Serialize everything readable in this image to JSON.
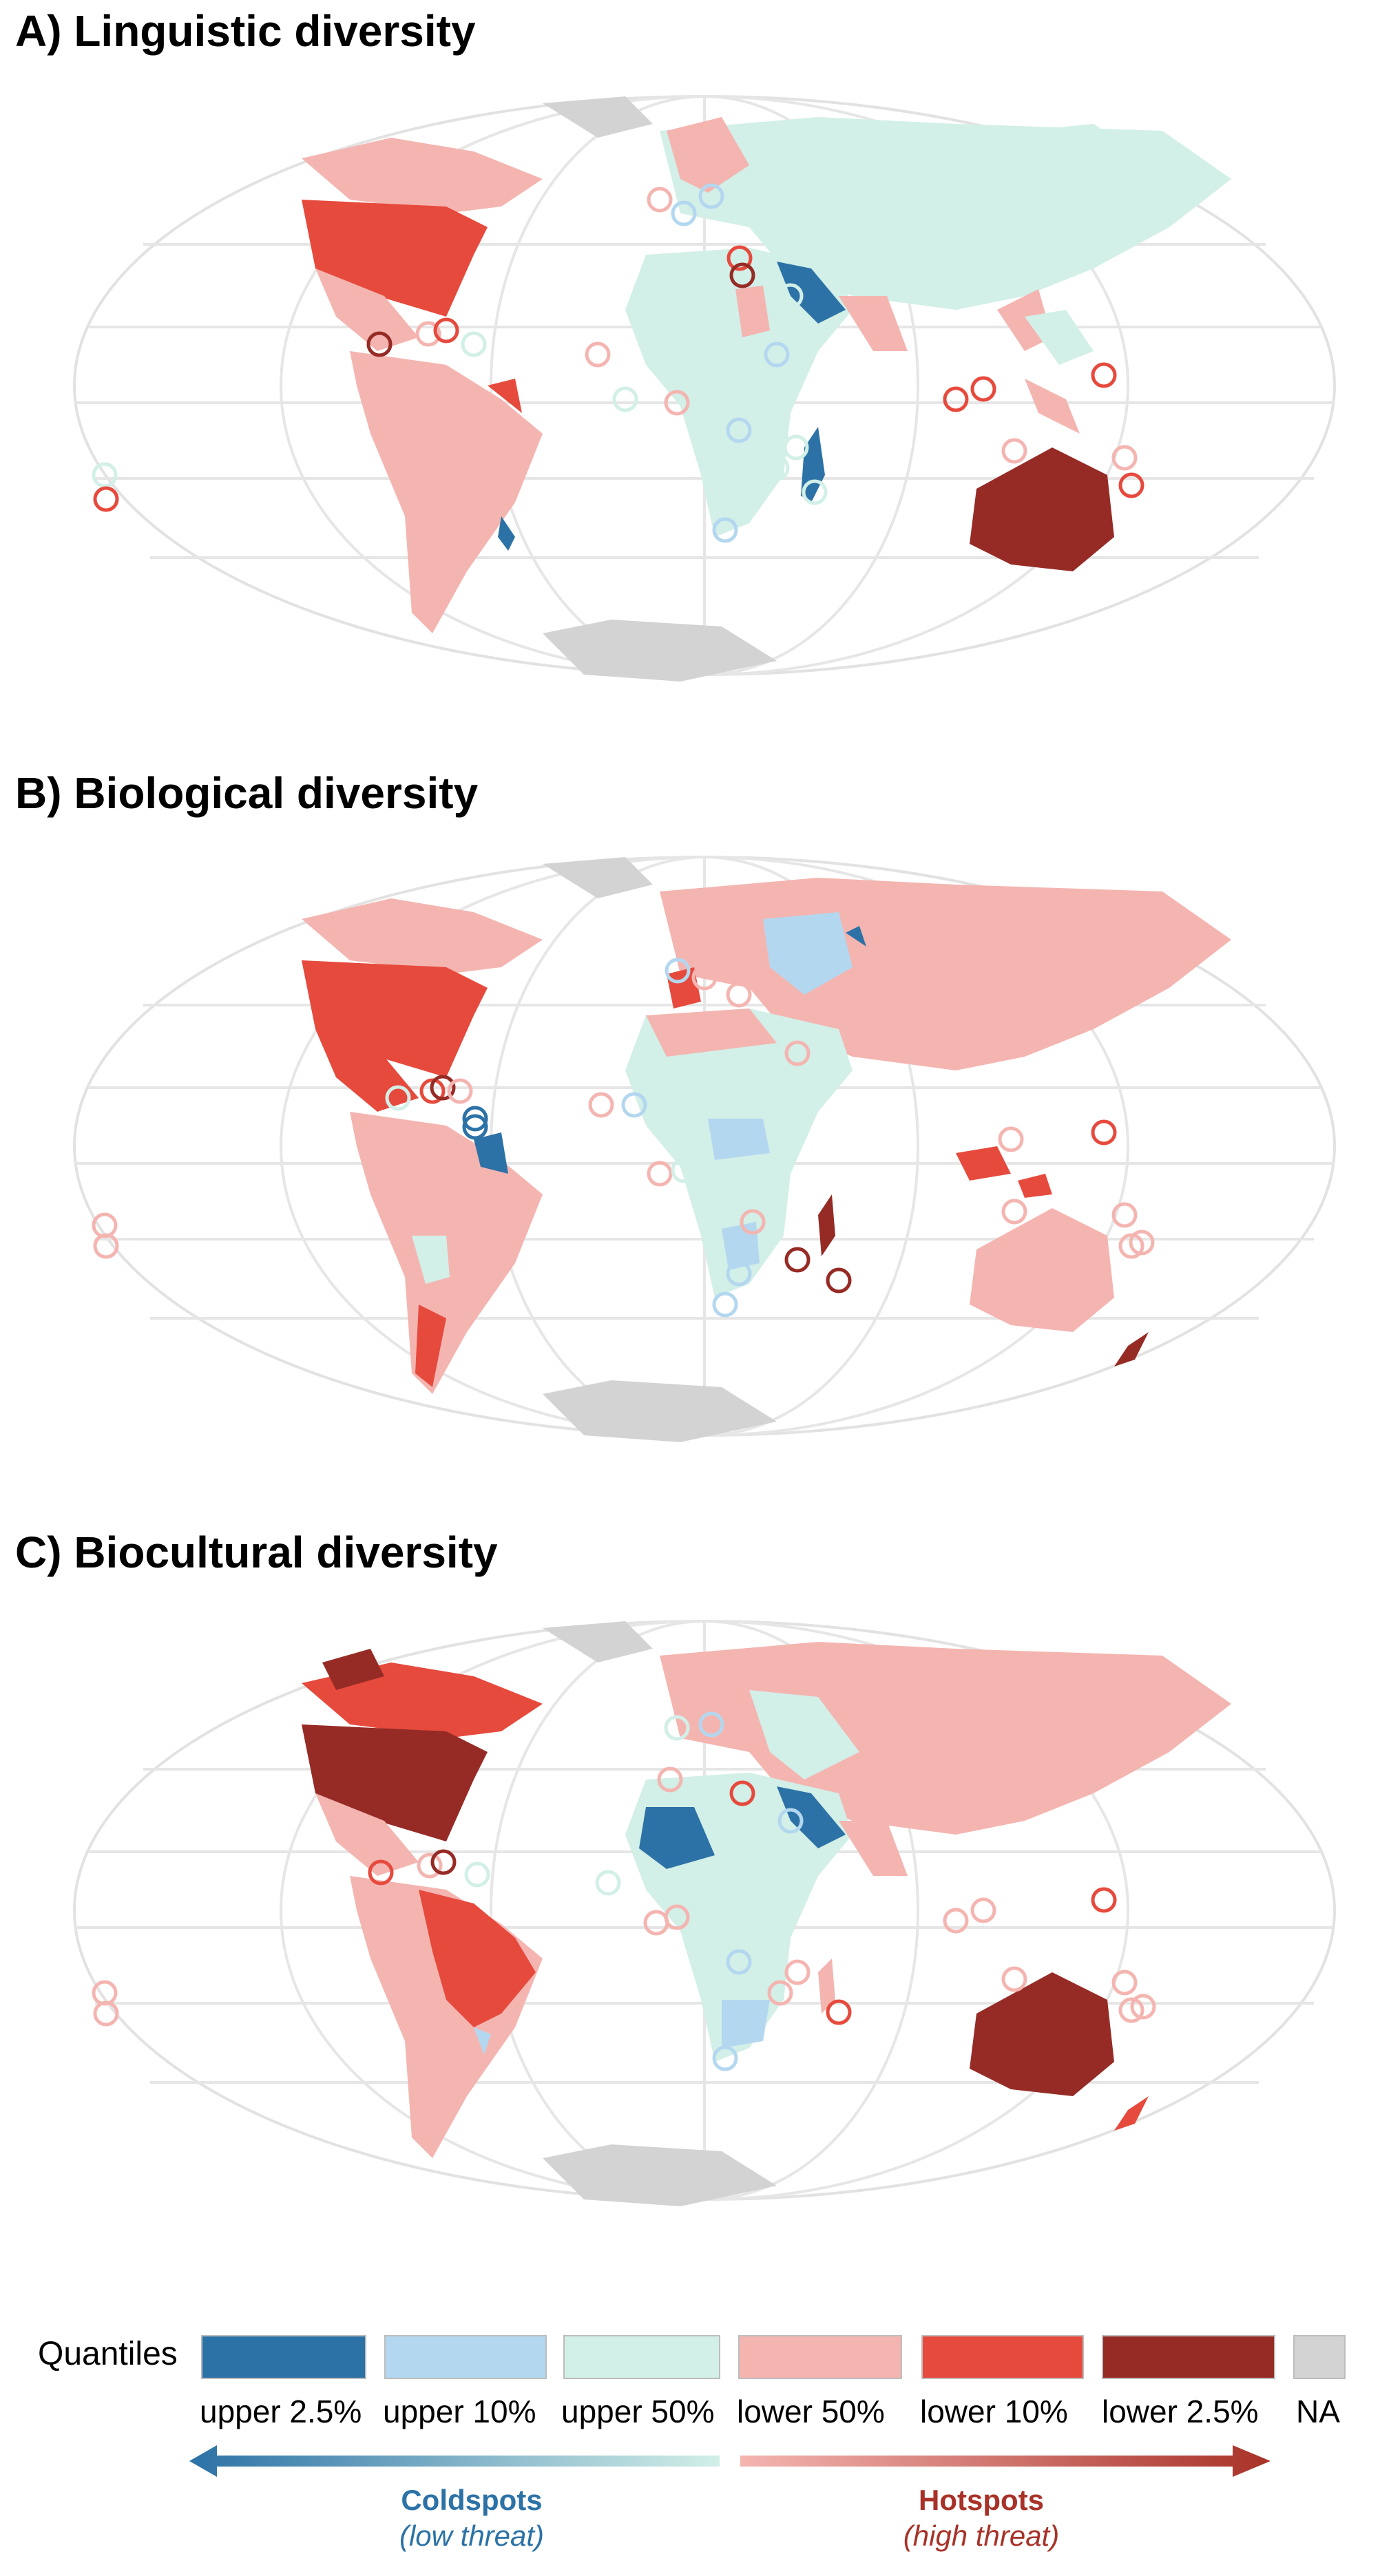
{
  "panels": [
    {
      "id": "A",
      "title": "A) Linguistic diversity"
    },
    {
      "id": "B",
      "title": "B) Biological diversity"
    },
    {
      "id": "C",
      "title": "C) Biocultural diversity"
    }
  ],
  "legend": {
    "title": "Quantiles",
    "items": [
      {
        "label": "upper 2.5%",
        "color": "#2c72a6"
      },
      {
        "label": "upper 10%",
        "color": "#b4d7f0"
      },
      {
        "label": "upper 50%",
        "color": "#d2efe8"
      },
      {
        "label": "lower 50%",
        "color": "#f4b5b1"
      },
      {
        "label": "lower 10%",
        "color": "#e64a3d"
      },
      {
        "label": "lower 2.5%",
        "color": "#962b26"
      },
      {
        "label": "NA",
        "color": "#d3d3d3"
      }
    ]
  },
  "arrows": {
    "left": {
      "title": "Coldspots",
      "subtitle": "(low threat)",
      "color": "#2c72a6"
    },
    "right": {
      "title": "Hotspots",
      "subtitle": "(high threat)",
      "color": "#a83228"
    }
  }
}
